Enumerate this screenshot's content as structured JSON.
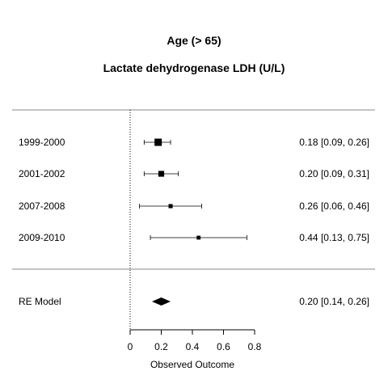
{
  "chart_data": {
    "type": "forest",
    "title": "Age (> 65)",
    "subtitle": "Lactate dehydrogenase LDH (U/L)",
    "xlabel": "Observed Outcome",
    "xlim": [
      0,
      0.8
    ],
    "xticks": [
      "0",
      "0.2",
      "0.4",
      "0.6",
      "0.8"
    ],
    "xtick_values": [
      0,
      0.2,
      0.4,
      0.6,
      0.8
    ],
    "reference_line": 0,
    "studies": [
      {
        "label": "1999-2000",
        "est": 0.18,
        "lo": 0.09,
        "hi": 0.26,
        "text": "0.18 [0.09, 0.26]",
        "weight": 1.0
      },
      {
        "label": "2001-2002",
        "est": 0.2,
        "lo": 0.09,
        "hi": 0.31,
        "text": "0.20 [0.09, 0.31]",
        "weight": 0.7
      },
      {
        "label": "2007-2008",
        "est": 0.26,
        "lo": 0.06,
        "hi": 0.46,
        "text": "0.26 [0.06, 0.46]",
        "weight": 0.35
      },
      {
        "label": "2009-2010",
        "est": 0.44,
        "lo": 0.13,
        "hi": 0.75,
        "text": "0.44 [0.13, 0.75]",
        "weight": 0.3
      }
    ],
    "summary": {
      "label": "RE Model",
      "est": 0.2,
      "lo": 0.14,
      "hi": 0.26,
      "text": "0.20 [0.14, 0.26]"
    }
  }
}
